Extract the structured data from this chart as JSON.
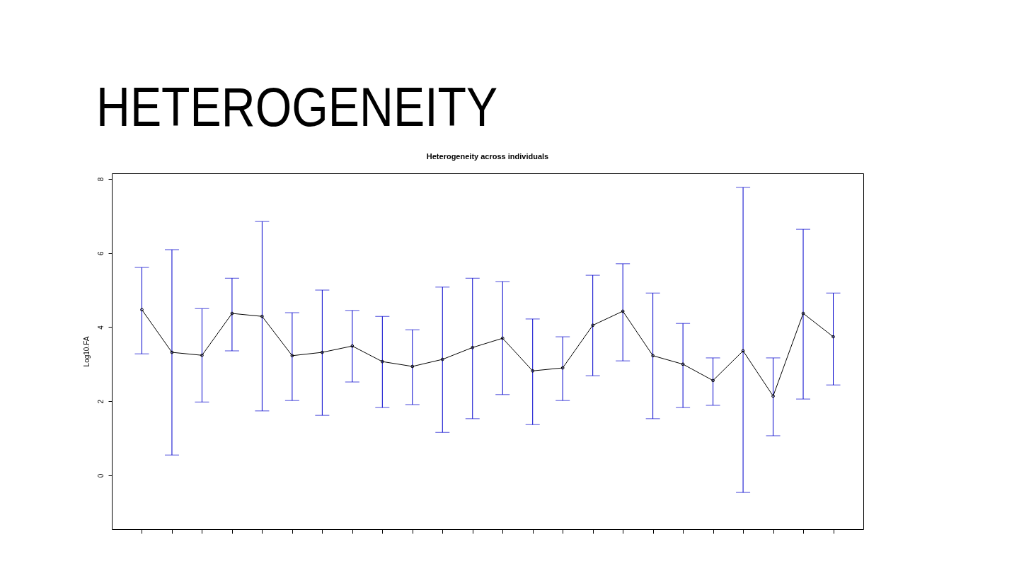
{
  "chart_data": {
    "type": "line",
    "title": "HETEROGENEITY",
    "subtitle": "Heterogeneity across individuals",
    "ylabel": "Log10.FA",
    "categories": [
      null,
      null,
      null,
      null,
      null,
      null,
      null,
      null,
      null,
      null,
      null,
      null,
      null,
      null,
      null,
      null,
      null,
      null,
      null,
      null,
      null,
      null,
      null,
      null
    ],
    "series": [
      {
        "color": "#000000",
        "values": [
          4.47,
          3.32,
          3.24,
          4.37,
          4.29,
          3.23,
          3.32,
          3.49,
          3.07,
          2.94,
          3.13,
          3.45,
          3.7,
          2.82,
          2.9,
          4.05,
          4.43,
          3.23,
          3.0,
          2.56,
          3.36,
          2.14,
          4.37,
          3.74
        ],
        "errors": [
          [
            3.28,
            5.61
          ],
          [
            0.55,
            6.09
          ],
          [
            1.98,
            4.5
          ],
          [
            3.36,
            5.32
          ],
          [
            1.74,
            6.85
          ],
          [
            2.02,
            4.39
          ],
          [
            1.62,
            5.0
          ],
          [
            2.52,
            4.45
          ],
          [
            1.83,
            4.29
          ],
          [
            1.91,
            3.93
          ],
          [
            1.16,
            5.08
          ],
          [
            1.53,
            5.32
          ],
          [
            2.18,
            5.23
          ],
          [
            1.37,
            4.22
          ],
          [
            2.02,
            3.74
          ],
          [
            2.69,
            5.4
          ],
          [
            3.09,
            5.71
          ],
          [
            1.53,
            4.92
          ],
          [
            1.83,
            4.1
          ],
          [
            1.89,
            3.17
          ],
          [
            -0.46,
            7.77
          ],
          [
            1.07,
            3.17
          ],
          [
            2.06,
            6.64
          ],
          [
            2.44,
            4.92
          ]
        ]
      }
    ],
    "ylim": [
      -1.45,
      8.15
    ],
    "yticks": [
      0,
      2,
      4,
      6,
      8
    ],
    "marker": "circle",
    "line_style": "solid"
  }
}
